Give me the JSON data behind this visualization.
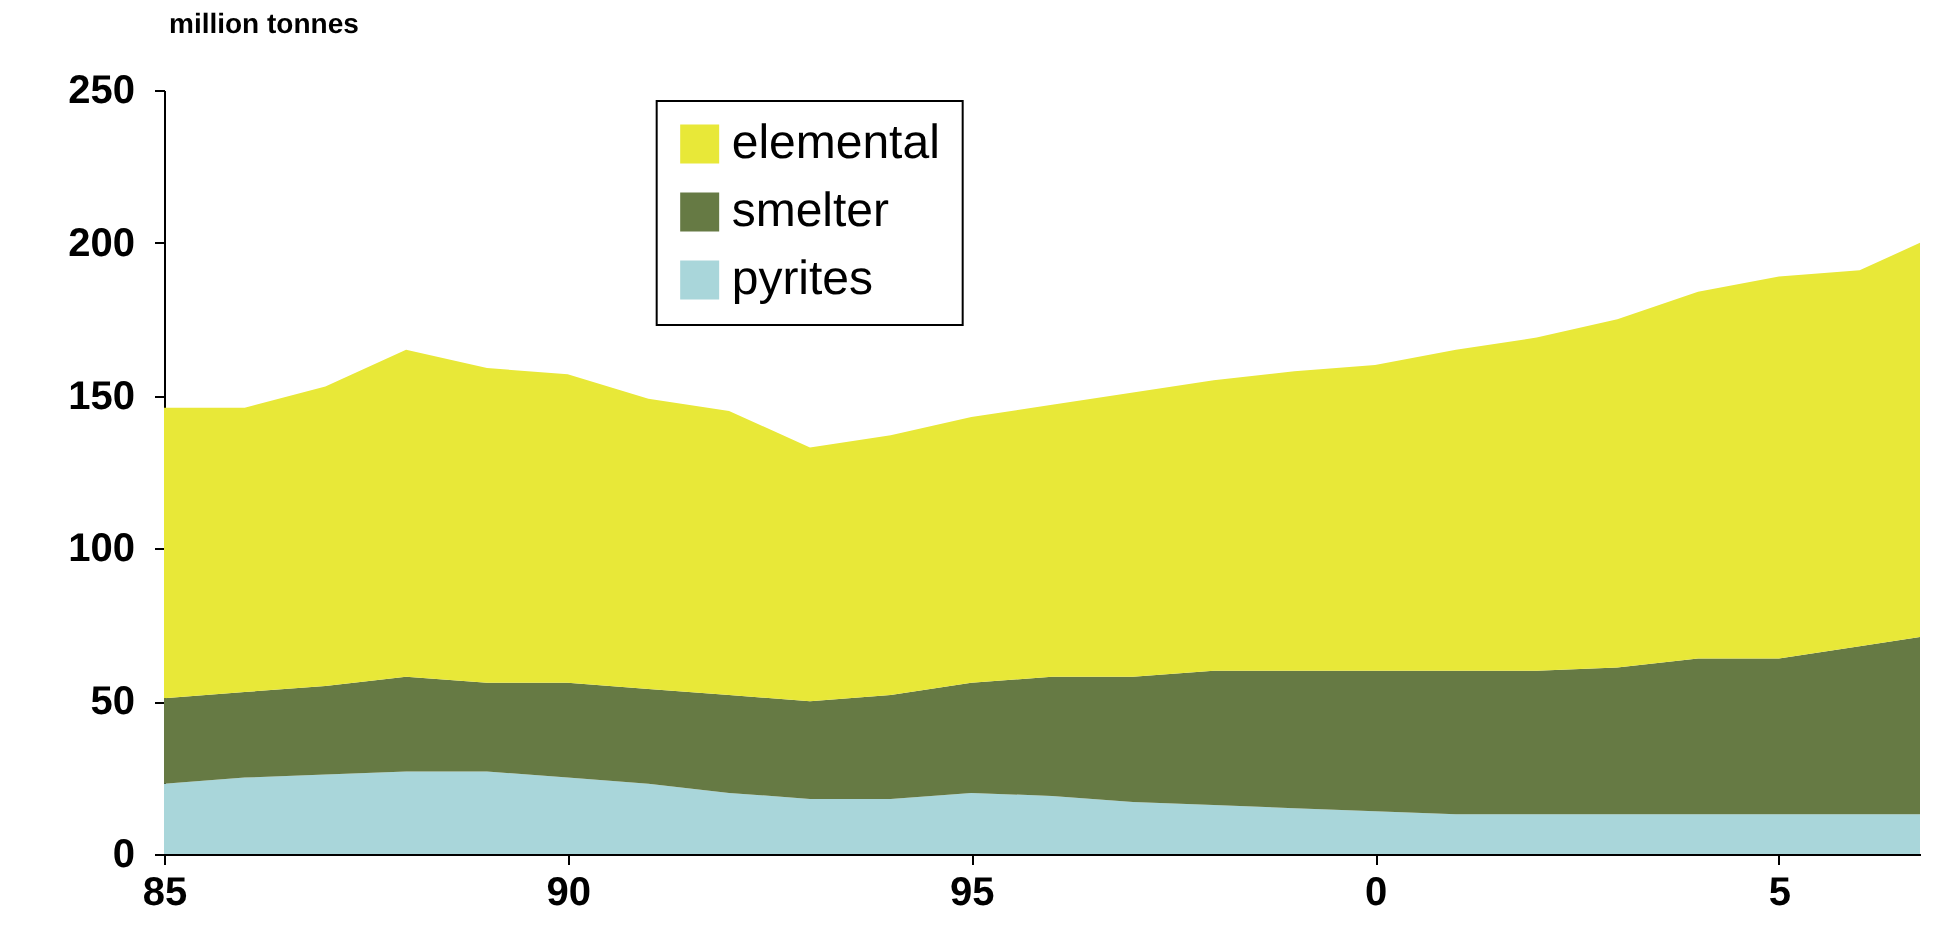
{
  "chart_data": {
    "type": "area",
    "stacked": true,
    "ylabel": "million tonnes",
    "x": [
      "1985",
      "1986",
      "1987",
      "1988",
      "1989",
      "1990",
      "1991",
      "1992",
      "1993",
      "1994",
      "1995",
      "1996",
      "1997",
      "1998",
      "1999",
      "2000",
      "2001",
      "2002",
      "2003",
      "2004",
      "2005",
      "2006",
      "2006-10"
    ],
    "series": [
      {
        "name": "pyrites",
        "color": "#a9d6da",
        "values": [
          23,
          25,
          26,
          27,
          27,
          25,
          23,
          20,
          18,
          18,
          20,
          19,
          17,
          16,
          15,
          14,
          13,
          13,
          13,
          13,
          13,
          13,
          13
        ]
      },
      {
        "name": "smelter",
        "color": "#667a44",
        "values": [
          28,
          28,
          29,
          31,
          29,
          31,
          31,
          32,
          32,
          34,
          36,
          39,
          41,
          44,
          45,
          46,
          47,
          47,
          48,
          51,
          51,
          55,
          58
        ]
      },
      {
        "name": "elemental",
        "color": "#e8e838",
        "values": [
          95,
          93,
          98,
          107,
          103,
          101,
          95,
          93,
          83,
          85,
          87,
          89,
          93,
          95,
          98,
          100,
          105,
          109,
          114,
          120,
          125,
          123,
          129
        ]
      }
    ],
    "xlim": [
      "1985",
      "2006-10"
    ],
    "xticks": [
      {
        "value": "1985",
        "label": "85"
      },
      {
        "value": "1990",
        "label": "90"
      },
      {
        "value": "1995",
        "label": "95"
      },
      {
        "value": "2000",
        "label": "0"
      },
      {
        "value": "2005",
        "label": "5"
      }
    ],
    "ylim": [
      0,
      250
    ],
    "yticks": [
      0,
      50,
      100,
      150,
      200,
      250
    ],
    "grid": false,
    "legend": "top"
  }
}
